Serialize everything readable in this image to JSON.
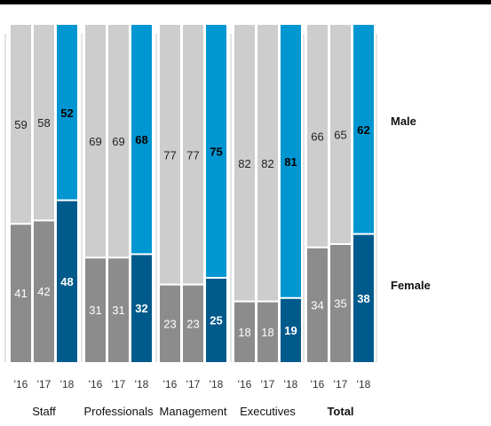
{
  "chart_data": {
    "type": "bar",
    "stacked": true,
    "ylim": [
      0,
      100
    ],
    "groups": [
      {
        "name": "Staff",
        "bold": false,
        "bars": [
          {
            "year": "'16",
            "female": 41,
            "male": 59
          },
          {
            "year": "'17",
            "female": 42,
            "male": 58
          },
          {
            "year": "'18",
            "female": 48,
            "male": 52
          }
        ]
      },
      {
        "name": "Professionals",
        "bold": false,
        "bars": [
          {
            "year": "'16",
            "female": 31,
            "male": 69
          },
          {
            "year": "'17",
            "female": 31,
            "male": 69
          },
          {
            "year": "'18",
            "female": 32,
            "male": 68
          }
        ]
      },
      {
        "name": "Management",
        "bold": false,
        "bars": [
          {
            "year": "'16",
            "female": 23,
            "male": 77
          },
          {
            "year": "'17",
            "female": 23,
            "male": 77
          },
          {
            "year": "'18",
            "female": 25,
            "male": 75
          }
        ]
      },
      {
        "name": "Executives",
        "bold": false,
        "bars": [
          {
            "year": "'16",
            "female": 18,
            "male": 82
          },
          {
            "year": "'17",
            "female": 18,
            "male": 82
          },
          {
            "year": "'18",
            "female": 19,
            "male": 81
          }
        ]
      },
      {
        "name": "Total",
        "bold": true,
        "bars": [
          {
            "year": "'16",
            "female": 34,
            "male": 66
          },
          {
            "year": "'17",
            "female": 35,
            "male": 65
          },
          {
            "year": "'18",
            "female": 38,
            "male": 62
          }
        ]
      }
    ],
    "legend": [
      {
        "label": "Male",
        "series": "male"
      },
      {
        "label": "Female",
        "series": "female"
      }
    ],
    "legend_placement": "right",
    "grid": false,
    "colors": {
      "female_past": "#8c8c8c",
      "male_past": "#cdcdcd",
      "female_latest": "#005a8c",
      "male_latest": "#0096d2",
      "top_rule": "#000000"
    }
  }
}
